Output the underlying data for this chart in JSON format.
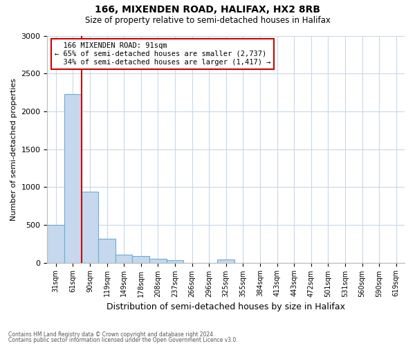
{
  "title": "166, MIXENDEN ROAD, HALIFAX, HX2 8RB",
  "subtitle": "Size of property relative to semi-detached houses in Halifax",
  "xlabel": "Distribution of semi-detached houses by size in Halifax",
  "ylabel": "Number of semi-detached properties",
  "bar_labels": [
    "31sqm",
    "61sqm",
    "90sqm",
    "119sqm",
    "149sqm",
    "178sqm",
    "208sqm",
    "237sqm",
    "266sqm",
    "296sqm",
    "325sqm",
    "355sqm",
    "384sqm",
    "413sqm",
    "443sqm",
    "472sqm",
    "501sqm",
    "531sqm",
    "560sqm",
    "590sqm",
    "619sqm"
  ],
  "bar_values": [
    500,
    2230,
    940,
    315,
    105,
    90,
    55,
    30,
    0,
    0,
    40,
    0,
    0,
    0,
    0,
    0,
    0,
    0,
    0,
    0,
    0
  ],
  "bar_color": "#c5d8ed",
  "bar_edge_color": "#6aacda",
  "property_line_index": 2,
  "property_label": "166 MIXENDEN ROAD: 91sqm",
  "pct_smaller": 65,
  "count_smaller": 2737,
  "pct_larger": 34,
  "count_larger": 1417,
  "annotation_box_color": "#ffffff",
  "annotation_box_edge_color": "#cc0000",
  "line_color": "#cc0000",
  "ylim": [
    0,
    3000
  ],
  "yticks": [
    0,
    500,
    1000,
    1500,
    2000,
    2500,
    3000
  ],
  "footer_line1": "Contains HM Land Registry data © Crown copyright and database right 2024.",
  "footer_line2": "Contains public sector information licensed under the Open Government Licence v3.0.",
  "bg_color": "#ffffff",
  "grid_color": "#c8d8e8"
}
